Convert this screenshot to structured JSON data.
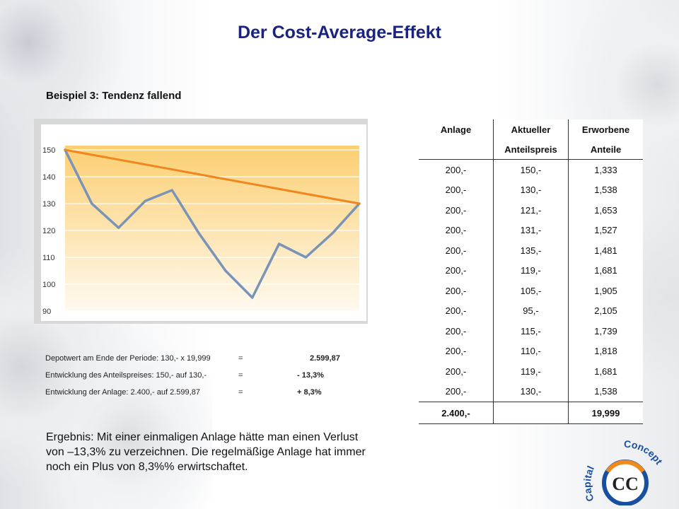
{
  "title": "Der Cost-Average-Effekt",
  "subtitle": "Beispiel 3: Tendenz fallend",
  "chart_data": {
    "type": "line",
    "x": [
      1,
      2,
      3,
      4,
      5,
      6,
      7,
      8,
      9,
      10,
      11,
      12
    ],
    "series": [
      {
        "values": [
          150,
          130,
          121,
          131,
          135,
          119,
          105,
          95,
          115,
          110,
          119,
          130
        ],
        "color": "#7a93b8"
      },
      {
        "values": [
          150,
          null,
          null,
          null,
          null,
          null,
          null,
          null,
          null,
          null,
          null,
          130
        ],
        "color": "#f0861e"
      }
    ],
    "y_ticks": [
      "150",
      "140",
      "130",
      "120",
      "110",
      "100",
      "90"
    ],
    "ylim": [
      90,
      150
    ],
    "title": "",
    "xlabel": "",
    "ylabel": "",
    "grid": true
  },
  "summary": [
    {
      "label": "Depotwert am Ende der Periode: 130,- x 19,999",
      "eq": "=",
      "value": "2.599,87"
    },
    {
      "label": "Entwicklung des Anteilspreises:  150,- auf 130,-",
      "eq": "=",
      "value": "- 13,3%"
    },
    {
      "label": "Entwicklung der Anlage: 2.400,- auf 2.599,87",
      "eq": "=",
      "value": "+ 8,3%"
    }
  ],
  "result_text": "Ergebnis: Mit einer einmaligen Anlage hätte man einen Verlust von –13,3% zu verzeichnen. Die regelmäßige Anlage hat immer noch ein Plus von 8,3%% erwirtschaftet.",
  "table": {
    "header_line1": [
      "Anlage",
      "Aktueller",
      "Erworbene"
    ],
    "header_line2": [
      "",
      "Anteilspreis",
      "Anteile"
    ],
    "rows": [
      [
        "200,-",
        "150,-",
        "1,333"
      ],
      [
        "200,-",
        "130,-",
        "1,538"
      ],
      [
        "200,-",
        "121,-",
        "1,653"
      ],
      [
        "200,-",
        "131,-",
        "1,527"
      ],
      [
        "200,-",
        "135,-",
        "1,481"
      ],
      [
        "200,-",
        "119,-",
        "1,681"
      ],
      [
        "200,-",
        "105,-",
        "1,905"
      ],
      [
        "200,-",
        "95,-",
        "2,105"
      ],
      [
        "200,-",
        "115,-",
        "1,739"
      ],
      [
        "200,-",
        "110,-",
        "1,818"
      ],
      [
        "200,-",
        "119,-",
        "1,681"
      ],
      [
        "200,-",
        "130,-",
        "1,538"
      ]
    ],
    "totals": [
      "2.400,-",
      "",
      "19,999"
    ]
  },
  "logo": {
    "text_left": "Capital",
    "text_right": "Concept",
    "monogram": "CC"
  },
  "colors": {
    "title": "#1a237e",
    "price_line": "#7a93b8",
    "trend_line": "#f0861e",
    "logo_blue": "#1a4fa0",
    "logo_orange": "#f08a1c"
  }
}
